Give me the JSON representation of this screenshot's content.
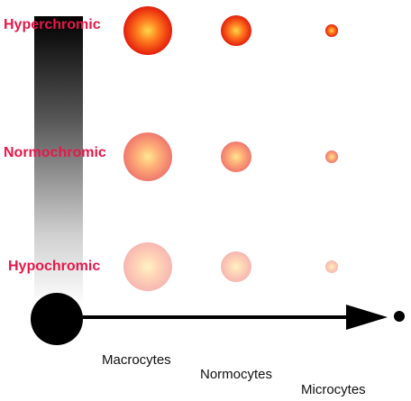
{
  "rows": [
    {
      "label": "Hyperchromic",
      "opacity": 1.0
    },
    {
      "label": "Normochromic",
      "opacity": 0.6
    },
    {
      "label": "Hypochromic",
      "opacity": 0.32
    }
  ],
  "columns": [
    {
      "label": "Macrocytes"
    },
    {
      "label": "Normocytes"
    },
    {
      "label": "Microcytes"
    }
  ],
  "colors": {
    "label": "#e8174a",
    "cell_center": "#ffd84a",
    "cell_mid": "#ff7a1e",
    "cell_edge": "#e41e0c",
    "axis": "#000000"
  }
}
